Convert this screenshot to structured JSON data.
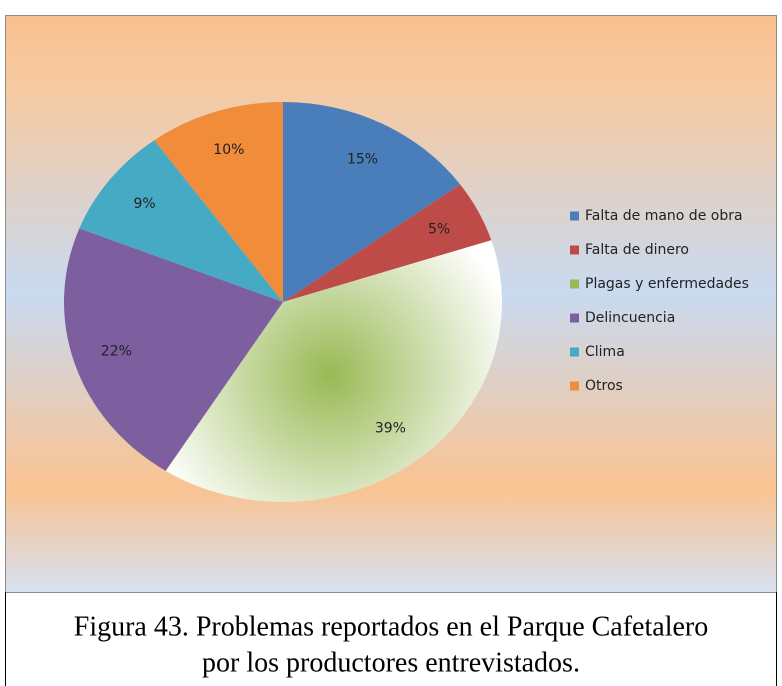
{
  "chart_data": {
    "type": "pie",
    "categories": [
      "Falta de mano de obra",
      "Falta de dinero",
      "Plagas y enfermedades",
      "Delincuencia",
      "Clima",
      "Otros"
    ],
    "values": [
      15,
      5,
      39,
      22,
      9,
      10
    ],
    "value_labels": [
      "15%",
      "5%",
      "39%",
      "22%",
      "9%",
      "10%"
    ],
    "colors": [
      "#4a7ebb",
      "#be4b48",
      "#98b954",
      "#7d5fa0",
      "#46aac5",
      "#f08c3a"
    ],
    "legend": "right"
  },
  "caption": [
    "Figura 43. Problemas reportados en el Parque Cafetalero",
    "por los productores entrevistados."
  ]
}
